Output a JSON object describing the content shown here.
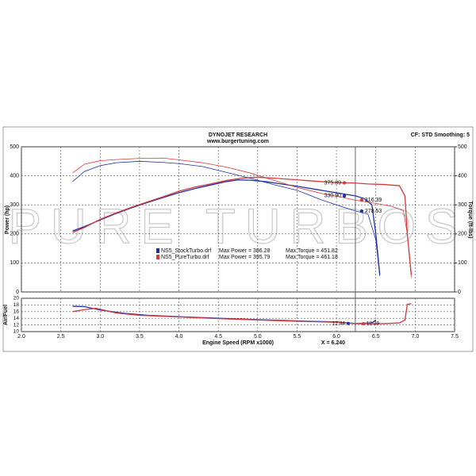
{
  "watermark": "PURE TURBOS",
  "chart_data": [
    {
      "type": "line",
      "title": "DYNOJET RESEARCH",
      "subtitle": "www.burgertuning.com",
      "note": "CF: STD  Smoothing: 5",
      "y_label": "Power (hp)",
      "y2_label": "Torque (ft-lbs)",
      "xlim": [
        2.0,
        7.5
      ],
      "ylim": [
        0,
        500
      ],
      "yticks": [
        0,
        100,
        200,
        300,
        400,
        500
      ],
      "y2lim": [
        0,
        500
      ],
      "y2ticks": [
        0,
        100,
        200,
        300,
        400,
        500
      ],
      "grid": true,
      "series": [
        {
          "name": "NS5_StockTurbo.drf",
          "color": "#1f2fa8",
          "x": [
            2.65,
            2.8,
            3.0,
            3.2,
            3.4,
            3.6,
            3.8,
            4.0,
            4.2,
            4.4,
            4.6,
            4.75,
            4.9,
            5.1,
            5.3,
            5.5,
            5.7,
            5.9,
            6.1,
            6.24,
            6.35,
            6.45,
            6.5,
            6.55
          ],
          "values": [
            210,
            225,
            248,
            270,
            290,
            308,
            325,
            342,
            356,
            368,
            380,
            386,
            385,
            380,
            372,
            364,
            355,
            346,
            337,
            331,
            322,
            300,
            200,
            60
          ]
        },
        {
          "name": "NS5_PureTurbo.drf",
          "color": "#d43a3a",
          "x": [
            2.65,
            2.8,
            3.0,
            3.2,
            3.4,
            3.6,
            3.8,
            4.0,
            4.2,
            4.4,
            4.6,
            4.8,
            5.0,
            5.2,
            5.4,
            5.6,
            5.8,
            6.0,
            6.24,
            6.4,
            6.6,
            6.8,
            6.87,
            6.9,
            6.95
          ],
          "values": [
            205,
            222,
            250,
            272,
            292,
            310,
            328,
            347,
            361,
            372,
            384,
            392,
            395,
            392,
            388,
            384,
            380,
            377,
            375,
            372,
            370,
            366,
            330,
            200,
            60
          ]
        },
        {
          "color": "#1f2fa8",
          "axis": "y2",
          "x": [
            2.65,
            2.8,
            3.0,
            3.2,
            3.5,
            3.8,
            4.0,
            4.3,
            4.6,
            4.9,
            5.2,
            5.5,
            5.8,
            6.0,
            6.24,
            6.4,
            6.5,
            6.55
          ],
          "values": [
            380,
            415,
            435,
            445,
            450,
            446,
            442,
            432,
            412,
            392,
            370,
            350,
            318,
            300,
            279,
            268,
            180,
            55
          ]
        },
        {
          "color": "#d43a3a",
          "axis": "y2",
          "x": [
            2.65,
            2.8,
            3.0,
            3.2,
            3.5,
            3.8,
            4.0,
            4.3,
            4.6,
            4.9,
            5.2,
            5.5,
            5.8,
            6.0,
            6.24,
            6.5,
            6.7,
            6.85,
            6.9,
            6.95
          ],
          "values": [
            410,
            440,
            452,
            456,
            460,
            461,
            455,
            445,
            430,
            410,
            385,
            360,
            340,
            330,
            316,
            305,
            295,
            280,
            200,
            50
          ]
        }
      ],
      "legend": [
        {
          "max_power": "Max Power = 386.28",
          "max_torque": "Max Torque = 451.82"
        },
        {
          "max_power": "Max Power = 395.79",
          "max_torque": "Max Torque = 461.18"
        }
      ],
      "cursor_values": [
        375.89,
        330.9,
        316.39,
        278.53
      ],
      "cursor_value_labels": [
        "375.89",
        "330.90",
        "316.39",
        "278.53"
      ],
      "cursor_colors": [
        "#d43a3a",
        "#1f2fa8",
        "#d43a3a",
        "#1f2fa8"
      ]
    },
    {
      "type": "line",
      "x_label": "Engine Speed (RPM x1000)",
      "y_label": "Air/Fuel",
      "xlim": [
        2.0,
        7.5
      ],
      "xticks": [
        {
          "value": 2.0,
          "label": "2.0"
        },
        {
          "value": 2.5,
          "label": "2.5"
        },
        {
          "value": 3.0,
          "label": "3.0"
        },
        {
          "value": 3.5,
          "label": "3.5"
        },
        {
          "value": 4.0,
          "label": "4.0"
        },
        {
          "value": 4.5,
          "label": "4.5"
        },
        {
          "value": 5.0,
          "label": "5.0"
        },
        {
          "value": 5.5,
          "label": "5.5"
        },
        {
          "value": 6.0,
          "label": "6.0"
        },
        {
          "value": 6.5,
          "label": "6.5"
        },
        {
          "value": 7.0,
          "label": "7.0"
        },
        {
          "value": 7.5,
          "label": "7.5"
        }
      ],
      "ylim": [
        10,
        20
      ],
      "yticks": [
        10,
        12,
        14,
        16,
        18,
        20
      ],
      "grid": true,
      "series": [
        {
          "color": "#1f2fa8",
          "x": [
            2.65,
            2.8,
            3.0,
            3.3,
            3.6,
            4.0,
            4.5,
            5.0,
            5.5,
            6.0,
            6.24,
            6.45,
            6.5
          ],
          "values": [
            17.6,
            17.5,
            16.5,
            15.5,
            14.9,
            14.5,
            14.0,
            13.6,
            13.2,
            12.9,
            12.44,
            12.6,
            13.5
          ]
        },
        {
          "color": "#d43a3a",
          "x": [
            2.65,
            2.8,
            2.95,
            3.2,
            3.5,
            4.0,
            4.5,
            5.0,
            5.5,
            6.0,
            6.24,
            6.6,
            6.8,
            6.87,
            6.9,
            6.95
          ],
          "values": [
            16.0,
            16.6,
            17.0,
            15.6,
            14.9,
            14.4,
            13.9,
            13.5,
            13.1,
            12.8,
            12.39,
            12.4,
            12.6,
            13.5,
            18.2,
            18.4
          ]
        }
      ],
      "cursor": {
        "value": 6.24,
        "label": "X = 6.240"
      },
      "cursor_values": [
        12.44,
        12.39
      ],
      "cursor_value_labels": [
        "12.44",
        "12.39"
      ],
      "cursor_colors": [
        "#1f2fa8",
        "#d43a3a"
      ]
    }
  ]
}
